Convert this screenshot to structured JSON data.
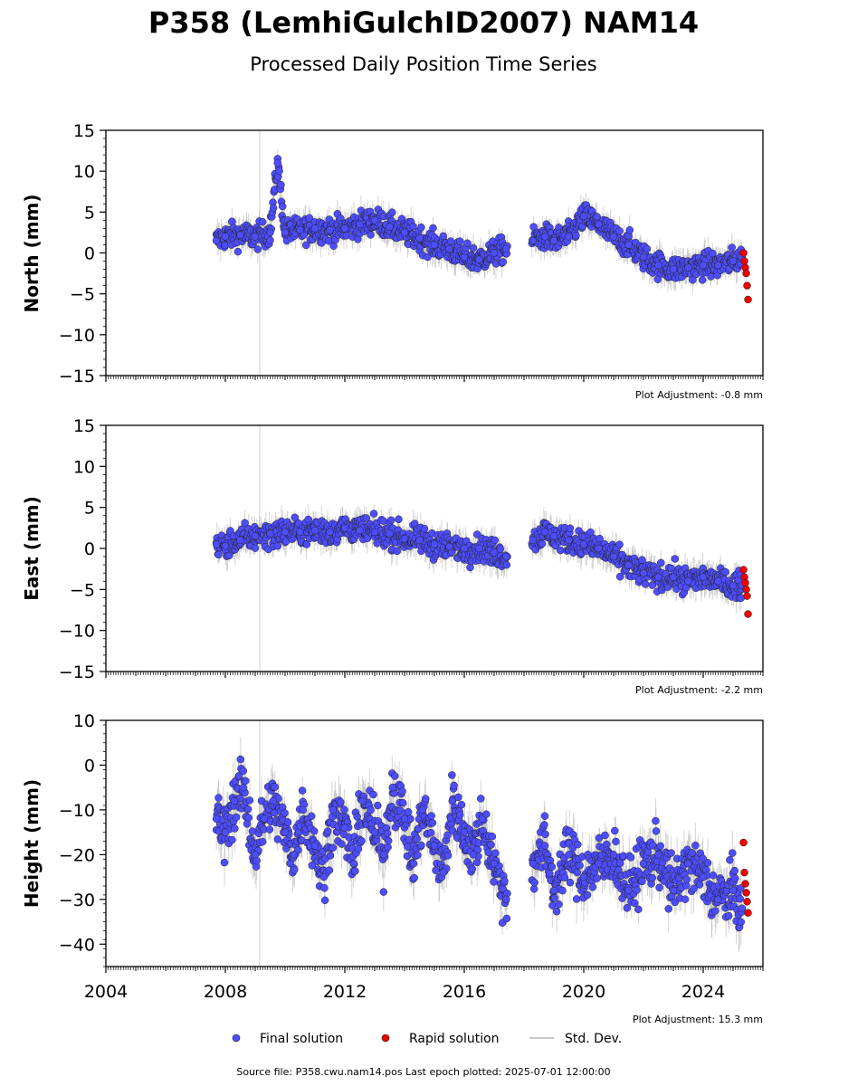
{
  "title": "P358 (LemhiGulchID2007) NAM14",
  "subtitle": "Processed Daily Position Time Series",
  "legend": {
    "final": "Final solution",
    "rapid": "Rapid solution",
    "std": "Std. Dev."
  },
  "footer": "Source file: P358.cwu.nam14.pos  Last epoch plotted: 2025-07-01 12:00:00",
  "colors": {
    "final": "#4d4dff",
    "rapid": "#ee0000",
    "std": "#b0b0b0",
    "edge": "#222222"
  },
  "chart_data": [
    {
      "type": "scatter",
      "ylabel": "North (mm)",
      "adjustment": "Plot Adjustment: -0.8 mm",
      "ylim": [
        -15,
        15
      ],
      "xlim": [
        2004,
        2026
      ],
      "yticks": [
        15,
        10,
        5,
        0,
        -5,
        -10,
        -15
      ],
      "series": [
        {
          "name": "Final solution",
          "x": [
            2007.7,
            2008.0,
            2008.5,
            2009.0,
            2009.5,
            2009.75,
            2010.0,
            2010.5,
            2011.0,
            2011.5,
            2012.0,
            2012.5,
            2013.0,
            2013.5,
            2014.0,
            2014.5,
            2015.0,
            2015.5,
            2016.0,
            2016.5,
            2017.0,
            2017.4,
            2018.3,
            2018.7,
            2019.0,
            2019.5,
            2020.0,
            2020.5,
            2021.0,
            2021.5,
            2022.0,
            2022.5,
            2023.0,
            2023.5,
            2024.0,
            2024.5,
            2025.0,
            2025.3
          ],
          "y": [
            1.5,
            2.0,
            2.2,
            2.0,
            2.5,
            11.0,
            2.5,
            2.8,
            3.0,
            2.8,
            3.0,
            3.5,
            4.0,
            3.2,
            2.5,
            1.8,
            1.0,
            0.5,
            -0.5,
            -0.8,
            0.0,
            0.5,
            1.5,
            2.0,
            1.5,
            2.0,
            4.5,
            3.5,
            2.0,
            1.0,
            -0.5,
            -1.5,
            -2.0,
            -1.8,
            -1.5,
            -1.5,
            -1.0,
            -0.5
          ]
        },
        {
          "name": "Rapid solution",
          "x": [
            2025.35,
            2025.38,
            2025.41,
            2025.44,
            2025.47,
            2025.5
          ],
          "y": [
            0.0,
            -1.0,
            -1.8,
            -2.5,
            -4.0,
            -5.7
          ]
        }
      ]
    },
    {
      "type": "scatter",
      "ylabel": "East (mm)",
      "adjustment": "Plot Adjustment: -2.2 mm",
      "ylim": [
        -15,
        15
      ],
      "xlim": [
        2004,
        2026
      ],
      "yticks": [
        15,
        10,
        5,
        0,
        -5,
        -10,
        -15
      ],
      "series": [
        {
          "name": "Final solution",
          "x": [
            2007.7,
            2008.0,
            2008.5,
            2009.0,
            2009.5,
            2010.0,
            2010.5,
            2011.0,
            2011.5,
            2012.0,
            2012.5,
            2013.0,
            2013.5,
            2014.0,
            2014.5,
            2015.0,
            2015.5,
            2016.0,
            2016.5,
            2017.0,
            2017.4,
            2018.3,
            2018.7,
            2019.0,
            2019.5,
            2020.0,
            2020.5,
            2021.0,
            2021.5,
            2022.0,
            2022.5,
            2023.0,
            2023.5,
            2024.0,
            2024.5,
            2025.0,
            2025.3
          ],
          "y": [
            0.5,
            0.3,
            1.0,
            1.5,
            1.8,
            2.0,
            2.0,
            2.2,
            2.0,
            2.5,
            2.2,
            2.0,
            1.8,
            1.2,
            1.0,
            0.5,
            0.2,
            0.0,
            0.0,
            -0.5,
            -1.0,
            1.0,
            2.0,
            1.5,
            1.0,
            0.5,
            0.0,
            -1.0,
            -2.0,
            -3.0,
            -3.5,
            -3.5,
            -4.0,
            -3.5,
            -4.0,
            -4.5,
            -4.5
          ]
        },
        {
          "name": "Rapid solution",
          "x": [
            2025.35,
            2025.38,
            2025.41,
            2025.44,
            2025.47,
            2025.5
          ],
          "y": [
            -2.6,
            -3.5,
            -4.2,
            -5.0,
            -5.8,
            -8.0
          ]
        }
      ]
    },
    {
      "type": "scatter",
      "ylabel": "Height (mm)",
      "adjustment": "Plot Adjustment: 15.3 mm",
      "ylim": [
        -45,
        10
      ],
      "xlim": [
        2004,
        2026
      ],
      "yticks": [
        10,
        0,
        -10,
        -20,
        -30,
        -40
      ],
      "xticks": [
        "2004",
        "2008",
        "2012",
        "2016",
        "2020",
        "2024"
      ],
      "series": [
        {
          "name": "Final solution",
          "x": [
            2007.7,
            2008.0,
            2008.3,
            2008.6,
            2009.0,
            2009.3,
            2009.6,
            2010.0,
            2010.3,
            2010.6,
            2011.0,
            2011.3,
            2011.6,
            2012.0,
            2012.3,
            2012.6,
            2013.0,
            2013.3,
            2013.6,
            2014.0,
            2014.3,
            2014.6,
            2015.0,
            2015.3,
            2015.6,
            2016.0,
            2016.3,
            2016.6,
            2017.0,
            2017.4,
            2018.3,
            2018.7,
            2019.0,
            2019.5,
            2020.0,
            2020.5,
            2021.0,
            2021.5,
            2022.0,
            2022.5,
            2023.0,
            2023.5,
            2024.0,
            2024.5,
            2025.0,
            2025.3
          ],
          "y": [
            -12,
            -15,
            -8,
            -5,
            -20,
            -12,
            -8,
            -15,
            -20,
            -10,
            -18,
            -25,
            -10,
            -14,
            -22,
            -8,
            -15,
            -20,
            -5,
            -12,
            -22,
            -10,
            -18,
            -24,
            -8,
            -15,
            -20,
            -12,
            -22,
            -30,
            -22,
            -18,
            -28,
            -20,
            -25,
            -22,
            -20,
            -28,
            -22,
            -20,
            -28,
            -22,
            -25,
            -30,
            -28,
            -32
          ]
        },
        {
          "name": "Rapid solution",
          "x": [
            2025.35,
            2025.38,
            2025.41,
            2025.44,
            2025.47,
            2025.5
          ],
          "y": [
            -17.3,
            -24.0,
            -26.5,
            -28.5,
            -30.5,
            -33.0
          ]
        }
      ]
    }
  ]
}
